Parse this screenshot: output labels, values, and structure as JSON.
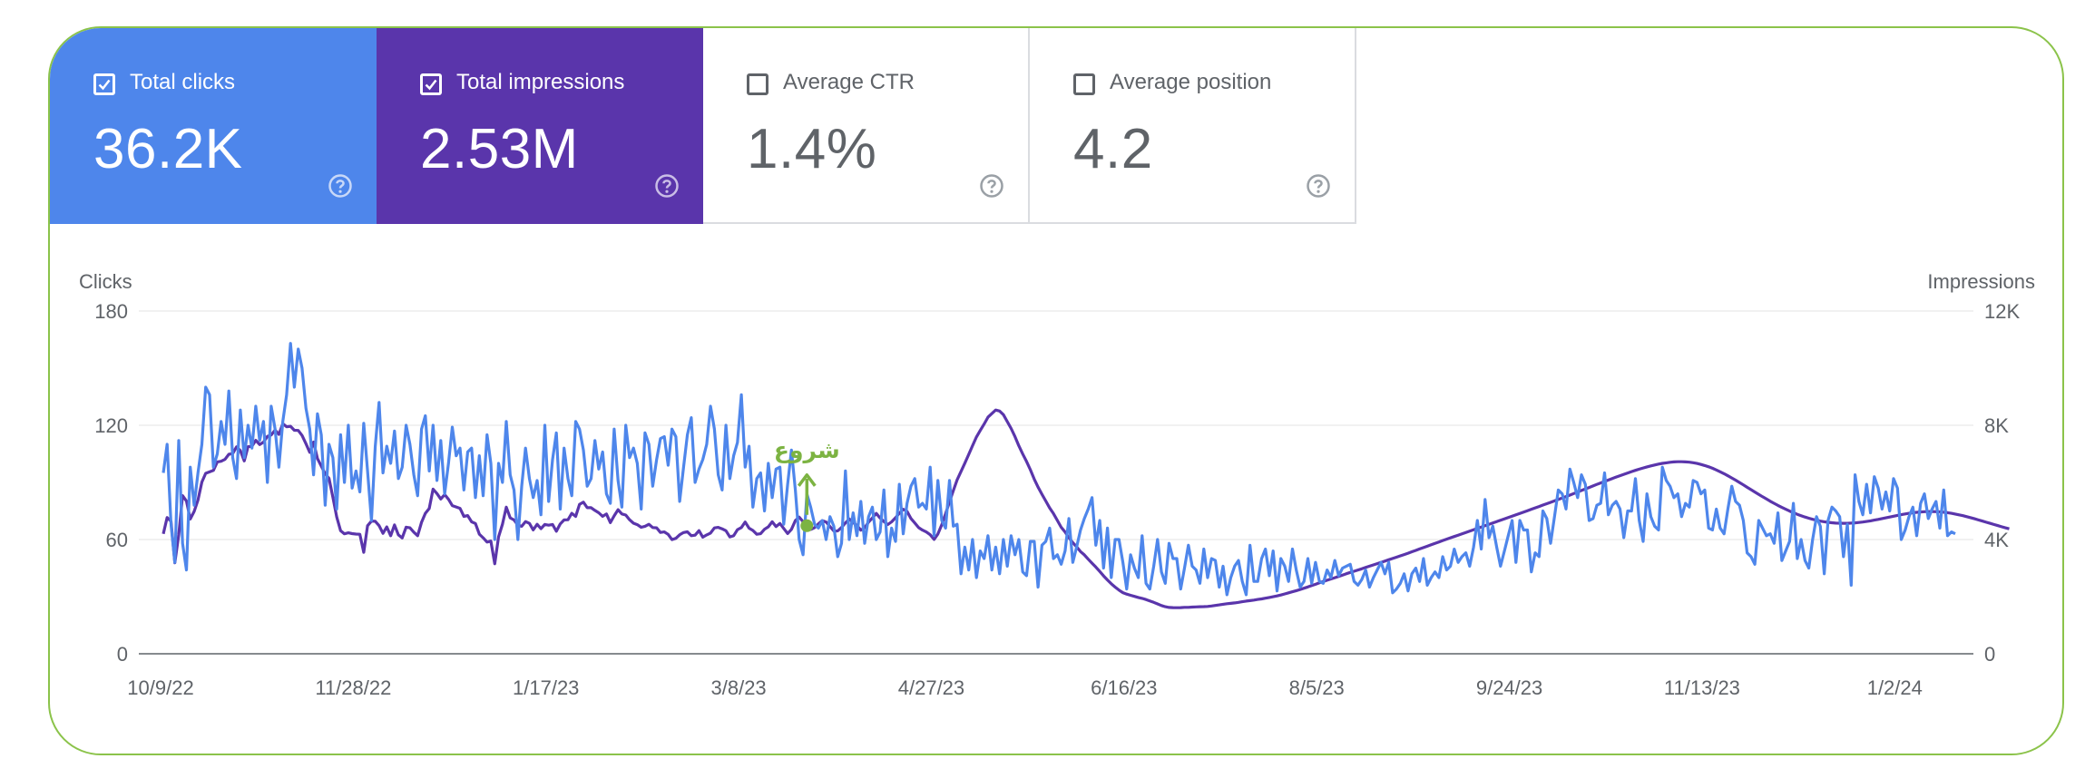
{
  "cards": [
    {
      "label": "Total clicks",
      "value": "36.2K",
      "checked": true,
      "color": "#4e86eb"
    },
    {
      "label": "Total impressions",
      "value": "2.53M",
      "checked": true,
      "color": "#5a35ab"
    },
    {
      "label": "Average CTR",
      "value": "1.4%",
      "checked": false
    },
    {
      "label": "Average position",
      "value": "4.2",
      "checked": false
    }
  ],
  "icons": {
    "checkbox": "checkbox-icon",
    "help": "help-circle-icon"
  },
  "annotation": {
    "text": "شروع",
    "color": "#7cb342",
    "index": 167
  },
  "chart_data": {
    "type": "line",
    "x_start": "10/9/22",
    "x_ticks": [
      "10/9/22",
      "11/28/22",
      "1/17/23",
      "3/8/23",
      "4/27/23",
      "6/16/23",
      "8/5/23",
      "9/24/23",
      "11/13/23",
      "1/2/24"
    ],
    "y_left": {
      "label": "Clicks",
      "range": [
        0,
        180
      ],
      "ticks": [
        "0",
        "60",
        "120",
        "180"
      ]
    },
    "y_right": {
      "label": "Impressions",
      "range": [
        0,
        12000
      ],
      "ticks": [
        "0",
        "4K",
        "8K",
        "12K"
      ]
    },
    "grid": true,
    "series": [
      {
        "name": "Total clicks",
        "axis": "left",
        "color": "#4e86eb",
        "values": [
          95,
          110,
          68,
          48,
          112,
          58,
          44,
          98,
          78,
          95,
          110,
          140,
          136,
          98,
          105,
          122,
          110,
          138,
          103,
          92,
          128,
          103,
          120,
          108,
          130,
          112,
          122,
          90,
          130,
          118,
          98,
          122,
          136,
          163,
          140,
          160,
          150,
          129,
          118,
          94,
          126,
          115,
          78,
          110,
          103,
          76,
          115,
          90,
          120,
          87,
          96,
          85,
          121,
          96,
          70,
          109,
          132,
          95,
          109,
          100,
          117,
          92,
          98,
          120,
          110,
          94,
          83,
          118,
          125,
          96,
          120,
          91,
          112,
          84,
          100,
          119,
          104,
          108,
          86,
          106,
          108,
          82,
          104,
          83,
          115,
          100,
          60,
          100,
          90,
          122,
          94,
          86,
          60,
          88,
          108,
          92,
          82,
          91,
          73,
          120,
          80,
          102,
          116,
          76,
          108,
          92,
          83,
          122,
          118,
          107,
          88,
          92,
          112,
          97,
          106,
          84,
          79,
          118,
          91,
          77,
          120,
          103,
          108,
          100,
          76,
          116,
          110,
          88,
          102,
          113,
          114,
          99,
          118,
          114,
          80,
          98,
          115,
          124,
          90,
          97,
          102,
          110,
          130,
          118,
          94,
          86,
          120,
          92,
          104,
          111,
          136,
          98,
          109,
          77,
          92,
          95,
          75,
          100,
          82,
          97,
          98,
          68,
          89,
          107,
          86,
          60,
          52,
          84,
          77,
          68,
          66,
          70,
          60,
          72,
          67,
          51,
          58,
          96,
          60,
          74,
          62,
          80,
          58,
          72,
          77,
          60,
          64,
          86,
          51,
          66,
          59,
          89,
          63,
          79,
          88,
          92,
          77,
          79,
          76,
          98,
          62,
          91,
          70,
          66,
          91,
          67,
          68,
          42,
          56,
          44,
          60,
          40,
          54,
          50,
          62,
          44,
          56,
          42,
          60,
          46,
          62,
          52,
          60,
          43,
          41,
          59,
          59,
          35,
          57,
          59,
          66,
          50,
          52,
          47,
          54,
          71,
          48,
          56,
          65,
          71,
          76,
          82,
          57,
          70,
          45,
          66,
          40,
          60,
          60,
          48,
          34,
          52,
          45,
          40,
          62,
          37,
          34,
          46,
          60,
          43,
          37,
          58,
          50,
          50,
          34,
          45,
          57,
          46,
          44,
          37,
          55,
          40,
          50,
          49,
          35,
          46,
          31,
          40,
          46,
          49,
          38,
          31,
          57,
          38,
          38,
          50,
          55,
          41,
          54,
          33,
          50,
          46,
          38,
          55,
          44,
          35,
          38,
          50,
          37,
          48,
          38,
          37,
          44,
          40,
          49,
          41,
          45,
          46,
          47,
          38,
          36,
          39,
          44,
          35,
          40,
          44,
          48,
          42,
          48,
          32,
          34,
          37,
          42,
          33,
          42,
          45,
          38,
          50,
          36,
          40,
          43,
          40,
          51,
          44,
          46,
          55,
          48,
          51,
          53,
          46,
          56,
          70,
          55,
          81,
          61,
          67,
          56,
          46,
          54,
          62,
          70,
          48,
          70,
          65,
          65,
          43,
          53,
          51,
          75,
          71,
          58,
          72,
          86,
          84,
          76,
          97,
          90,
          82,
          94,
          89,
          70,
          71,
          78,
          79,
          95,
          73,
          78,
          80,
          76,
          61,
          75,
          75,
          92,
          70,
          59,
          84,
          72,
          67,
          65,
          98,
          91,
          88,
          82,
          84,
          72,
          79,
          77,
          91,
          90,
          84,
          86,
          66,
          65,
          76,
          66,
          63,
          76,
          88,
          80,
          78,
          70,
          53,
          51,
          47,
          70,
          66,
          62,
          63,
          58,
          74,
          49,
          54,
          59,
          79,
          50,
          60,
          49,
          45,
          60,
          72,
          67,
          42,
          70,
          77,
          75,
          72,
          51,
          68,
          36,
          94,
          80,
          73,
          89,
          74,
          93,
          87,
          76,
          85,
          75,
          92,
          87,
          60,
          65,
          72,
          77,
          62,
          79,
          84,
          71,
          76,
          80,
          66,
          86,
          62,
          64,
          63
        ]
      },
      {
        "name": "Total impressions",
        "axis": "right",
        "color": "#5a35ab",
        "values": [
          4196,
          4769,
          4635,
          3184,
          4165,
          5536,
          5346,
          4719,
          4983,
          5380,
          6012,
          6317,
          6368,
          6419,
          6716,
          6740,
          6807,
          6984,
          7010,
          7244,
          7113,
          6752,
          7250,
          7263,
          7472,
          7325,
          7408,
          7608,
          7659,
          7832,
          7684,
          8056,
          7950,
          7964,
          7825,
          7820,
          7646,
          7357,
          7052,
          7414,
          6835,
          6573,
          6303,
          6143,
          5478,
          4789,
          4309,
          4199,
          4236,
          4206,
          4192,
          4184,
          3552,
          4484,
          4646,
          4638,
          4485,
          4216,
          4440,
          4133,
          4512,
          4162,
          4057,
          4431,
          4409,
          4256,
          4132,
          4603,
          4919,
          5090,
          5765,
          5610,
          5420,
          5575,
          5409,
          5186,
          5140,
          5093,
          4810,
          4838,
          4618,
          4562,
          4188,
          4060,
          3912,
          3945,
          3149,
          4094,
          4537,
          5133,
          4760,
          4687,
          4502,
          4463,
          4629,
          4564,
          4338,
          4534,
          4382,
          4527,
          4502,
          4526,
          4290,
          4546,
          4686,
          4692,
          4918,
          4809,
          5229,
          5307,
          5115,
          5114,
          5018,
          4936,
          4814,
          4895,
          4591,
          4829,
          5046,
          4894,
          4856,
          4692,
          4571,
          4520,
          4429,
          4465,
          4533,
          4420,
          4408,
          4248,
          4267,
          4180,
          3998,
          4040,
          4165,
          4246,
          4270,
          4132,
          4151,
          4312,
          4082,
          4161,
          4226,
          4406,
          4426,
          4376,
          4309,
          4091,
          4133,
          4345,
          4419,
          4614,
          4396,
          4319,
          4185,
          4203,
          4358,
          4445,
          4623,
          4455,
          4561,
          4386,
          4211,
          4356,
          4662,
          4785,
          4624,
          4483,
          4351,
          4417,
          4548,
          4662,
          4614,
          4455,
          4297,
          4302,
          4421,
          4582,
          4722,
          4590,
          4493,
          4326,
          4412,
          4609,
          4756,
          4913,
          4752,
          4630,
          4524,
          4618,
          4763,
          4919,
          5061,
          4987,
          4735,
          4580,
          4417,
          4329,
          4265,
          4167,
          4003,
          4193,
          4522,
          4906,
          5318,
          5710,
          6090,
          6383,
          6672,
          6982,
          7285,
          7592,
          7818,
          8045,
          8284,
          8411,
          8532,
          8498,
          8371,
          8127,
          7889,
          7599,
          7283,
          6995,
          6732,
          6445,
          6113,
          5836,
          5583,
          5348,
          5106,
          4909,
          4667,
          4429,
          4262,
          4065,
          3888,
          3746,
          3578,
          3465,
          3310,
          3173,
          3034,
          2881,
          2728,
          2585,
          2451,
          2333,
          2228,
          2141,
          2088,
          2047,
          2009,
          1972,
          1940,
          1899,
          1851,
          1801,
          1747,
          1690,
          1649,
          1621,
          1616,
          1612,
          1617,
          1625,
          1626,
          1634,
          1641,
          1647,
          1650,
          1657,
          1672,
          1692,
          1712,
          1732,
          1751,
          1766,
          1781,
          1800,
          1823,
          1843,
          1860,
          1880,
          1900,
          1922,
          1945,
          1970,
          1998,
          2025,
          2057,
          2094,
          2132,
          2171,
          2209,
          2252,
          2294,
          2339,
          2386,
          2432,
          2481,
          2530,
          2575,
          2619,
          2665,
          2708,
          2756,
          2802,
          2847,
          2889,
          2932,
          2976,
          3022,
          3067,
          3110,
          3155,
          3199,
          3246,
          3293,
          3338,
          3381,
          3428,
          3474,
          3521,
          3571,
          3620,
          3669,
          3718,
          3766,
          3815,
          3866,
          3915,
          3964,
          4012,
          4059,
          4105,
          4152,
          4199,
          4247,
          4295,
          4342,
          4389,
          4437,
          4486,
          4534,
          4582,
          4630,
          4677,
          4724,
          4772,
          4820,
          4868,
          4915,
          4962,
          5010,
          5059,
          5107,
          5156,
          5205,
          5254,
          5303,
          5352,
          5403,
          5454,
          5505,
          5557,
          5610,
          5664,
          5717,
          5770,
          5823,
          5876,
          5929,
          5981,
          6033,
          6084,
          6135,
          6186,
          6235,
          6284,
          6331,
          6377,
          6421,
          6464,
          6504,
          6542,
          6578,
          6610,
          6640,
          6666,
          6687,
          6704,
          6716,
          6723,
          6724,
          6719,
          6707,
          6688,
          6662,
          6630,
          6591,
          6546,
          6494,
          6436,
          6373,
          6305,
          6233,
          6157,
          6078,
          5997,
          5914,
          5830,
          5746,
          5663,
          5580,
          5498,
          5418,
          5341,
          5266,
          5194,
          5125,
          5059,
          4997,
          4939,
          4884,
          4834,
          4788,
          4746,
          4708,
          4675,
          4646,
          4622,
          4602,
          4587,
          4576,
          4570,
          4568,
          4569,
          4575,
          4584,
          4597,
          4614,
          4633,
          4655,
          4679,
          4705,
          4732,
          4760,
          4788,
          4816,
          4844,
          4870,
          4894,
          4916,
          4936,
          4952,
          4965,
          4974,
          4979,
          4980,
          4976,
          4968,
          4956,
          4939,
          4918,
          4893,
          4865,
          4834,
          4800,
          4764,
          4726,
          4687,
          4647,
          4607,
          4567,
          4527,
          4488,
          4449,
          4411,
          4374
        ]
      }
    ]
  }
}
